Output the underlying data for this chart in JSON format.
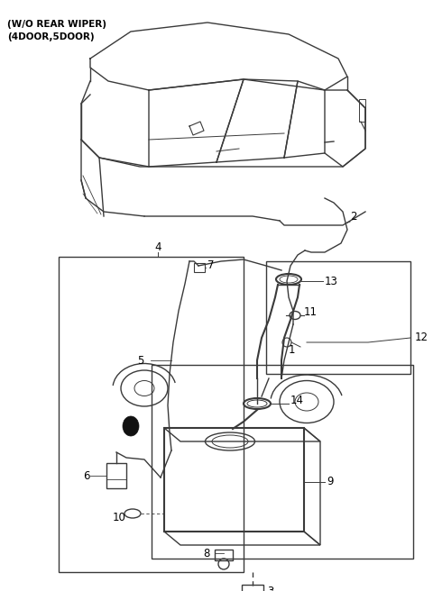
{
  "title_line1": "(W/O REAR WIPER)",
  "title_line2": "(4DOOR,5DOOR)",
  "bg_color": "#ffffff",
  "line_color": "#3a3a3a",
  "label_color": "#000000",
  "fig_width": 4.8,
  "fig_height": 6.56,
  "dpi": 100
}
